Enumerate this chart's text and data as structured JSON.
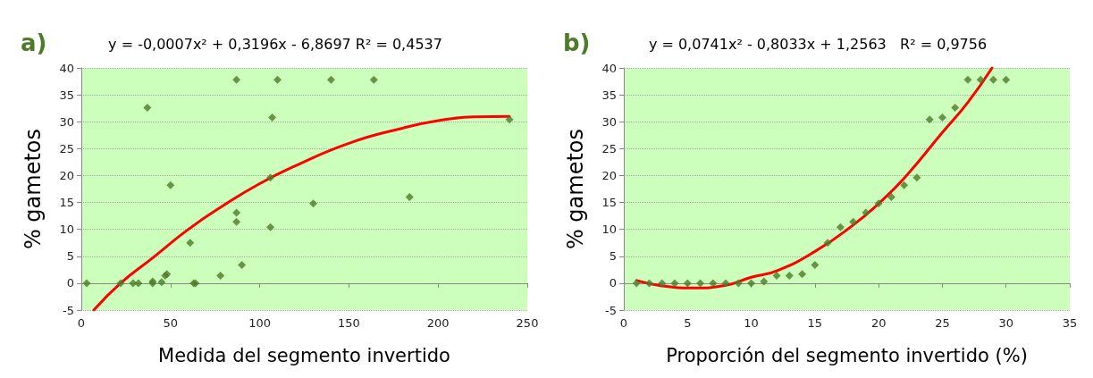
{
  "chart_data": [
    {
      "type": "scatter",
      "title": "a)",
      "subtitle": "y = -0,0007x² + 0,3196x - 6,8697 R² = 0,4537",
      "xlabel": "Medida del segmento invertido",
      "ylabel": "% gametos",
      "xlim": [
        0,
        250
      ],
      "xticks": [
        0,
        50,
        100,
        150,
        200,
        250
      ],
      "ylim": [
        -5,
        40
      ],
      "yticks": [
        -5,
        0,
        5,
        10,
        15,
        20,
        25,
        30,
        35,
        40
      ],
      "grid": "y",
      "marker": "diamond",
      "series": [
        {
          "color": "#4f7a28",
          "x": [
            3,
            22,
            29,
            32,
            37,
            40,
            40,
            45,
            47,
            48,
            50,
            61,
            63,
            64,
            78,
            87,
            87,
            87,
            90,
            106,
            107,
            106,
            110,
            130,
            140,
            164,
            184,
            240
          ],
          "values": [
            0,
            0,
            0,
            0,
            32.6,
            0.3,
            0,
            0.2,
            1.4,
            1.7,
            18.2,
            7.5,
            0,
            0,
            1.4,
            37.8,
            13.1,
            11.4,
            3.4,
            19.6,
            30.8,
            10.4,
            37.8,
            14.8,
            37.8,
            37.8,
            16,
            30.4
          ]
        },
        {
          "type": "line",
          "color": "#ff0000",
          "marker": "none",
          "x": [
            7,
            22,
            40,
            60,
            80,
            100,
            120,
            150,
            180,
            200,
            220,
            240
          ],
          "values": [
            -5,
            0,
            4.7,
            10,
            14.5,
            18.5,
            21.8,
            26,
            28.8,
            30.2,
            30.9,
            31
          ]
        }
      ]
    },
    {
      "type": "scatter",
      "title": "b)",
      "subtitle": "y = 0,0741x² - 0,8033x + 1,2563   R² = 0,9756",
      "xlabel": "Proporción del segmento invertido (%)",
      "ylabel": "% gametos",
      "xlim": [
        0,
        35
      ],
      "xticks": [
        0,
        5,
        10,
        15,
        20,
        25,
        30,
        35
      ],
      "ylim": [
        -5,
        40
      ],
      "yticks": [
        -5,
        0,
        5,
        10,
        15,
        20,
        25,
        30,
        35,
        40
      ],
      "grid": "y",
      "marker": "diamond",
      "series": [
        {
          "color": "#4f7a28",
          "x": [
            1,
            2,
            3,
            4,
            5,
            6,
            7,
            8,
            9,
            10,
            11,
            12,
            13,
            14,
            15,
            16,
            17,
            18,
            19,
            20,
            21,
            22,
            23,
            24,
            25,
            26,
            27,
            28,
            29,
            30
          ],
          "values": [
            0,
            0,
            0,
            0,
            0,
            0,
            0,
            0,
            0,
            0,
            0.3,
            1.4,
            1.4,
            1.7,
            3.4,
            7.5,
            10.4,
            11.4,
            13.1,
            14.8,
            16,
            18.2,
            19.6,
            30.4,
            30.8,
            32.6,
            37.8,
            37.8,
            37.8,
            37.8
          ]
        },
        {
          "type": "line",
          "color": "#ff0000",
          "marker": "none",
          "x": [
            1,
            3,
            5.5,
            8,
            10,
            12,
            15,
            18,
            20,
            22,
            25,
            27,
            28.9
          ],
          "values": [
            0.5,
            -0.5,
            -0.9,
            -0.4,
            1.1,
            2.3,
            5.9,
            10.8,
            14.8,
            19.5,
            28,
            33.6,
            40
          ]
        }
      ]
    }
  ]
}
